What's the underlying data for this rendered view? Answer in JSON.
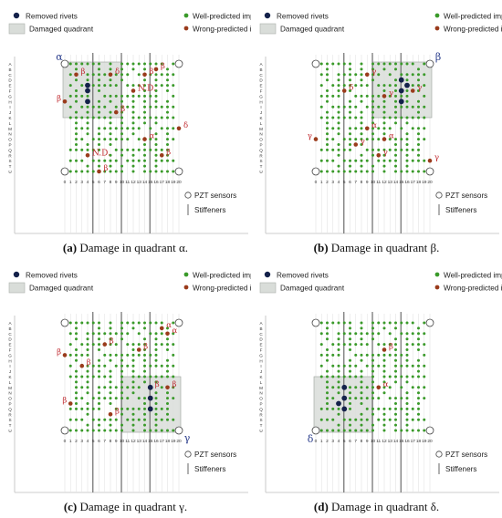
{
  "legend": {
    "removed_rivets": "Removed rivets",
    "damaged_quadrant": "Damaged quadrant",
    "well_predicted": "Well-predicted impacts",
    "wrong_predicted": "Wrong-predicted impacts",
    "pzt_sensors": "PZT sensors",
    "stiffeners": "Stiffeners"
  },
  "grid": {
    "row_labels": [
      "A",
      "B",
      "C",
      "D",
      "E",
      "F",
      "G",
      "H",
      "I",
      "J",
      "K",
      "L",
      "M",
      "N",
      "O",
      "P",
      "Q",
      "R",
      "S",
      "T",
      "U"
    ],
    "col_labels": [
      "0",
      "1",
      "2",
      "3",
      "4",
      "5",
      "6",
      "7",
      "8",
      "9",
      "10",
      "11",
      "12",
      "13",
      "14",
      "15",
      "16",
      "17",
      "18",
      "19",
      "20"
    ]
  },
  "colors": {
    "well": "#3a9a2a",
    "wrong": "#9a3b1c",
    "rivet": "#14214a",
    "quadrant_fill": "#d9ddd9",
    "label_red": "#c0282e",
    "quadrant_label": "#2a3d8c"
  },
  "panels": [
    {
      "caption_tag": "(a)",
      "caption_text": " Damage in quadrant α.",
      "quadrant_label": "α",
      "quadrant": "top-left",
      "rivets": [
        [
          4,
          4
        ],
        [
          4,
          5
        ],
        [
          4,
          7
        ]
      ],
      "wrong": [
        {
          "col": 2,
          "row": 2,
          "label": "β"
        },
        {
          "col": 8,
          "row": 2,
          "label": "δ"
        },
        {
          "col": 14,
          "row": 2,
          "label": "β"
        },
        {
          "col": 16,
          "row": 1,
          "label": "β"
        },
        {
          "col": 12,
          "row": 5,
          "label": "N.D."
        },
        {
          "col": 0,
          "row": 7,
          "label": "β"
        },
        {
          "col": 9,
          "row": 9,
          "label": "β"
        },
        {
          "col": 20,
          "row": 12,
          "label": "δ"
        },
        {
          "col": 14,
          "row": 14,
          "label": "α"
        },
        {
          "col": 4,
          "row": 17,
          "label": "N.D."
        },
        {
          "col": 17,
          "row": 17,
          "label": "β"
        },
        {
          "col": 6,
          "row": 20,
          "label": "β"
        }
      ]
    },
    {
      "caption_tag": "(b)",
      "caption_text": " Damage in quadrant β.",
      "quadrant_label": "β",
      "quadrant": "top-right",
      "rivets": [
        [
          15,
          3
        ],
        [
          15,
          5
        ],
        [
          16,
          4
        ],
        [
          15,
          7
        ]
      ],
      "wrong": [
        {
          "col": 9,
          "row": 2,
          "label": "γ"
        },
        {
          "col": 5,
          "row": 5,
          "label": "δ"
        },
        {
          "col": 12,
          "row": 6,
          "label": "γ"
        },
        {
          "col": 17,
          "row": 5,
          "label": "γ"
        },
        {
          "col": 9,
          "row": 12,
          "label": "α"
        },
        {
          "col": 0,
          "row": 14,
          "label": "γ"
        },
        {
          "col": 7,
          "row": 15,
          "label": "γ"
        },
        {
          "col": 12,
          "row": 14,
          "label": "α"
        },
        {
          "col": 11,
          "row": 17,
          "label": "γ"
        },
        {
          "col": 20,
          "row": 18,
          "label": "γ"
        }
      ]
    },
    {
      "caption_tag": "(c)",
      "caption_text": " Damage in quadrant γ.",
      "quadrant_label": "γ",
      "quadrant": "bottom-right",
      "rivets": [
        [
          15,
          12
        ],
        [
          15,
          14
        ],
        [
          15,
          16
        ]
      ],
      "wrong": [
        {
          "col": 17,
          "row": 1,
          "label": "α"
        },
        {
          "col": 18,
          "row": 2,
          "label": "α"
        },
        {
          "col": 7,
          "row": 4,
          "label": "β"
        },
        {
          "col": 13,
          "row": 5,
          "label": "β"
        },
        {
          "col": 0,
          "row": 6,
          "label": "β"
        },
        {
          "col": 3,
          "row": 8,
          "label": "β"
        },
        {
          "col": 15,
          "row": 12,
          "label": "β"
        },
        {
          "col": 18,
          "row": 12,
          "label": "β"
        },
        {
          "col": 1,
          "row": 15,
          "label": "β"
        },
        {
          "col": 8,
          "row": 17,
          "label": "β"
        }
      ]
    },
    {
      "caption_tag": "(d)",
      "caption_text": " Damage in quadrant δ.",
      "quadrant_label": "δ",
      "quadrant": "bottom-left",
      "rivets": [
        [
          5,
          12
        ],
        [
          5,
          14
        ],
        [
          5,
          16
        ],
        [
          4,
          15
        ]
      ],
      "wrong": [
        {
          "col": 12,
          "row": 5,
          "label": "β"
        },
        {
          "col": 11,
          "row": 12,
          "label": "α"
        }
      ]
    }
  ]
}
